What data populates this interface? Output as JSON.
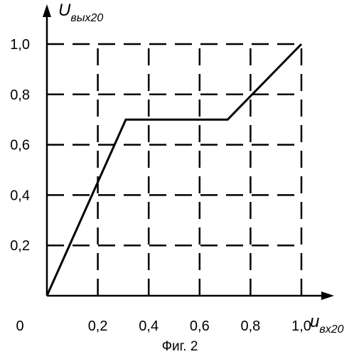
{
  "chart_data": {
    "type": "line",
    "title": "",
    "caption": "Фиг. 2",
    "xlabel": {
      "main": "u",
      "sub": "вх20"
    },
    "ylabel": {
      "main": "U",
      "sub": "вых20"
    },
    "xlim": [
      0,
      1.1
    ],
    "ylim": [
      0,
      1.1
    ],
    "grid": true,
    "grid_style": "dashed",
    "origin_label": "0",
    "x_ticks": [
      {
        "value": 0.2,
        "label": "0,2"
      },
      {
        "value": 0.4,
        "label": "0,4"
      },
      {
        "value": 0.6,
        "label": "0,6"
      },
      {
        "value": 0.8,
        "label": "0,8"
      },
      {
        "value": 1.0,
        "label": "1,0"
      }
    ],
    "y_ticks": [
      {
        "value": 0.2,
        "label": "0,2"
      },
      {
        "value": 0.4,
        "label": "0,4"
      },
      {
        "value": 0.6,
        "label": "0,6"
      },
      {
        "value": 0.8,
        "label": "0,8"
      },
      {
        "value": 1.0,
        "label": "1,0"
      }
    ],
    "series": [
      {
        "x": [
          0.0,
          0.31,
          0.71,
          1.0
        ],
        "y": [
          0.0,
          0.7,
          0.7,
          1.0
        ]
      }
    ],
    "colors": {
      "line": "#000000",
      "grid": "#000000",
      "axes": "#000000"
    }
  }
}
